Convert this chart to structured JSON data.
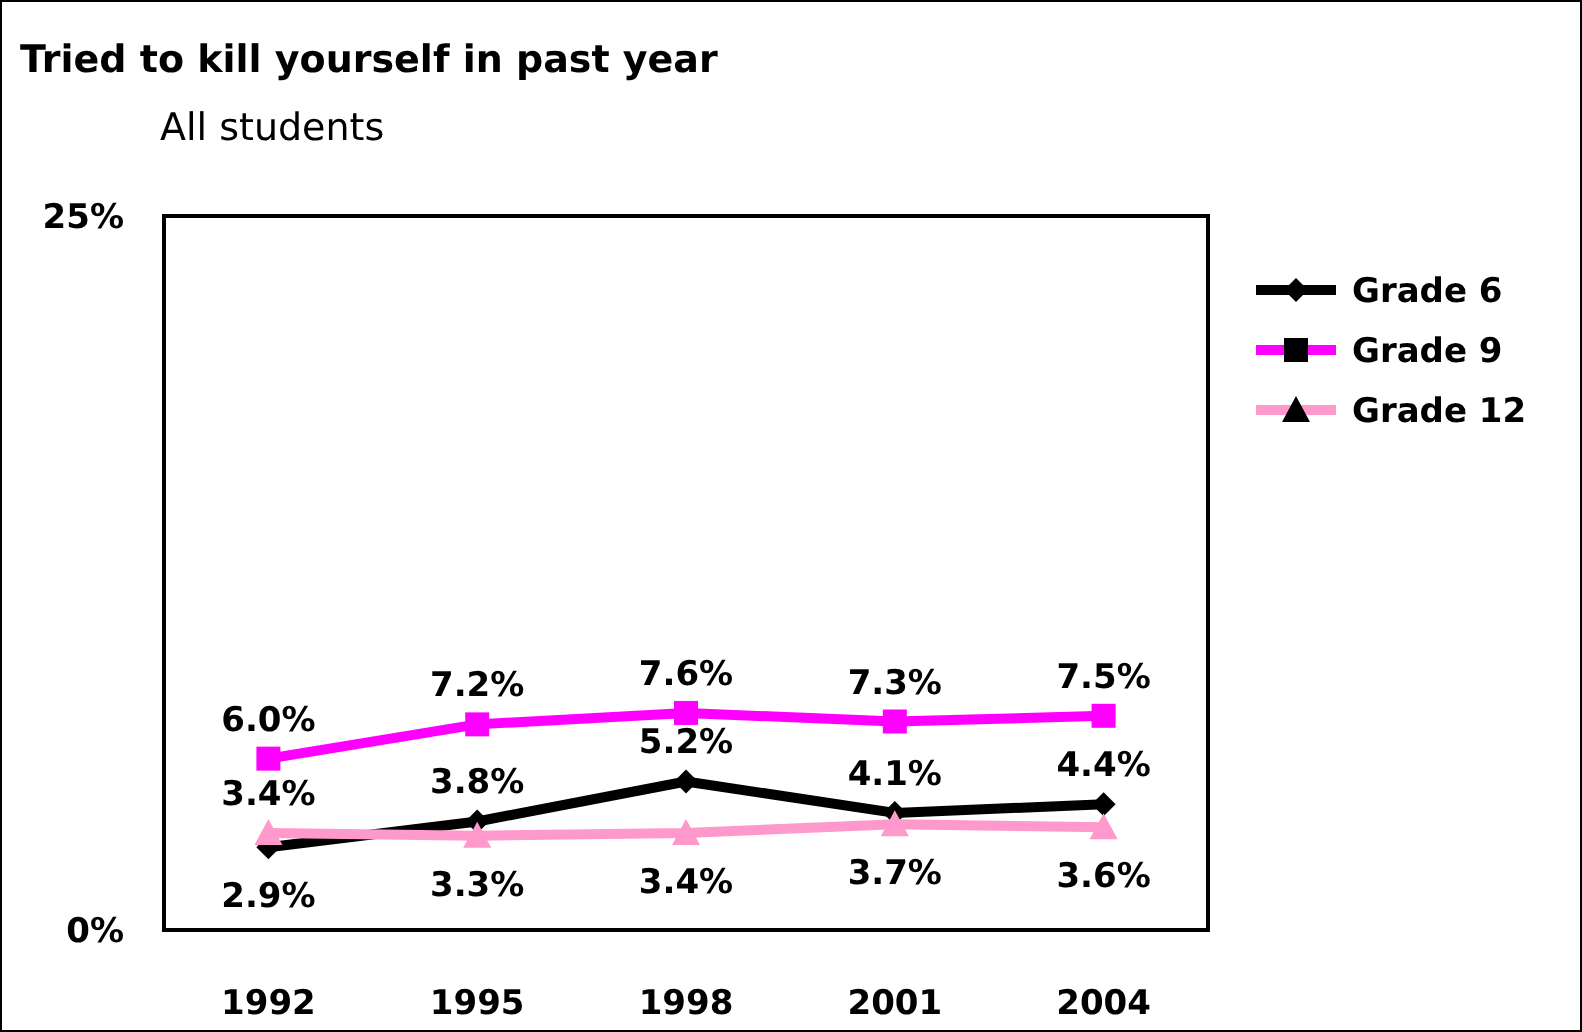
{
  "chart_data": {
    "type": "line",
    "title": "Tried to kill yourself in past year",
    "subtitle": "All students",
    "categories": [
      "1992",
      "1995",
      "1998",
      "2001",
      "2004"
    ],
    "series": [
      {
        "name": "Grade 6",
        "color": "#000000",
        "marker": "diamond",
        "values": [
          2.9,
          3.8,
          5.2,
          4.1,
          4.4
        ],
        "value_labels": [
          "2.9%",
          "3.8%",
          "5.2%",
          "4.1%",
          "4.4%"
        ]
      },
      {
        "name": "Grade 9",
        "color": "#ff00ff",
        "marker": "square",
        "values": [
          6.0,
          7.2,
          7.6,
          7.3,
          7.5
        ],
        "value_labels": [
          "6.0%",
          "7.2%",
          "7.6%",
          "7.3%",
          "7.5%"
        ]
      },
      {
        "name": "Grade 12",
        "color": "#ff99cc",
        "marker": "triangle",
        "values": [
          3.4,
          3.3,
          3.4,
          3.7,
          3.6
        ],
        "value_labels": [
          "3.4%",
          "3.3%",
          "3.4%",
          "3.7%",
          "3.6%"
        ]
      }
    ],
    "ylim": [
      0,
      25
    ],
    "yticks": [
      {
        "value": 0,
        "label": "0%"
      },
      {
        "value": 25,
        "label": "25%"
      }
    ],
    "grid": false,
    "legend": "right"
  }
}
